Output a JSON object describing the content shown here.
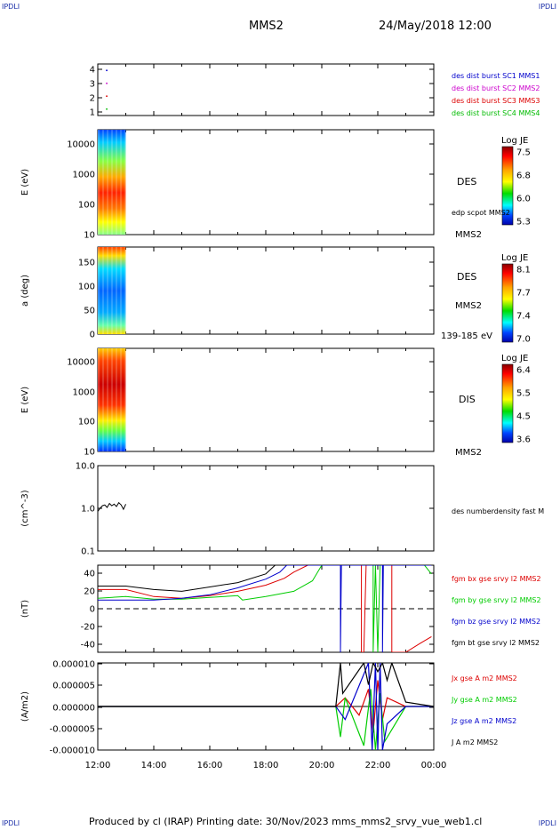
{
  "corner_label": "IPDLI",
  "header": {
    "title": "MMS2",
    "datetime": "24/May/2018 12:00"
  },
  "footer": "Produced by cl (IRAP)   Printing date: 30/Nov/2023   mms_mms2_srvy_vue_web1.cl",
  "x_axis": {
    "ticks": [
      "12:00",
      "14:00",
      "16:00",
      "18:00",
      "20:00",
      "22:00",
      "00:00"
    ]
  },
  "chart_data": [
    {
      "type": "scatter",
      "ylim": [
        0.5,
        4.5
      ],
      "yticks": [
        "4",
        "3",
        "2",
        "1"
      ],
      "legend": [
        {
          "label": "des dist burst SC1 MMS1",
          "color": "#0000cc"
        },
        {
          "label": "des dist burst SC2 MMS2",
          "color": "#cc00cc"
        },
        {
          "label": "des dist burst SC3 MMS3",
          "color": "#dd0000"
        },
        {
          "label": "des dist burst SC4 MMS4",
          "color": "#00bb00"
        }
      ],
      "points": [
        {
          "x": "12:10",
          "y": 4,
          "color": "#0000cc"
        },
        {
          "x": "12:10",
          "y": 3,
          "color": "#cc00cc"
        },
        {
          "x": "12:10",
          "y": 2,
          "color": "#dd0000"
        },
        {
          "x": "12:10",
          "y": 1,
          "color": "#00bb00"
        }
      ]
    },
    {
      "type": "heatmap",
      "ylabel": "E (eV)",
      "yticks": [
        "10000",
        "1000",
        "100",
        "10"
      ],
      "x_range": [
        "12:00",
        "13:00"
      ],
      "right_labels": [
        "DES",
        "edp scpot MMS2",
        "MMS2"
      ],
      "colorbar": {
        "title": "Log JE",
        "ticks": [
          "7.5",
          "6.8",
          "6.0",
          "5.3"
        ]
      }
    },
    {
      "type": "heatmap",
      "ylabel": "a (deg)",
      "yticks": [
        "150",
        "100",
        "50",
        "0"
      ],
      "x_range": [
        "12:00",
        "13:00"
      ],
      "right_labels": [
        "DES",
        "MMS2",
        "139-185 eV"
      ],
      "colorbar": {
        "title": "Log JE",
        "ticks": [
          "8.1",
          "7.7",
          "7.4",
          "7.0"
        ]
      }
    },
    {
      "type": "heatmap",
      "ylabel": "E (eV)",
      "yticks": [
        "10000",
        "1000",
        "100",
        "10"
      ],
      "x_range": [
        "12:00",
        "13:00"
      ],
      "right_labels": [
        "DIS",
        "MMS2"
      ],
      "colorbar": {
        "title": "Log JE",
        "ticks": [
          "6.4",
          "5.5",
          "4.5",
          "3.6"
        ]
      }
    },
    {
      "type": "line",
      "ylabel": "(cm^-3)",
      "yscale": "log",
      "yticks": [
        "10.0",
        "1.0",
        "0.1"
      ],
      "series": [
        {
          "name": "des numberdensity fast M",
          "color": "#000000",
          "x": [
            "12:00",
            "12:05",
            "12:10",
            "12:15",
            "12:20",
            "12:25",
            "12:30",
            "12:35",
            "12:40",
            "12:45",
            "12:50",
            "12:55",
            "13:00"
          ],
          "y": [
            0.85,
            1.0,
            1.15,
            1.2,
            1.05,
            1.3,
            1.15,
            1.25,
            1.1,
            1.35,
            1.2,
            0.95,
            1.25
          ]
        }
      ]
    },
    {
      "type": "line",
      "ylabel": "(nT)",
      "ylim": [
        -50,
        50
      ],
      "yticks": [
        "40",
        "20",
        "0",
        "-20",
        "-40"
      ],
      "series": [
        {
          "name": "fgm bx gse srvy l2 MMS2",
          "color": "#dd0000",
          "x": [
            "12:00",
            "13:00",
            "14:00",
            "15:00",
            "16:00",
            "17:00",
            "18:00",
            "18:40",
            "19:00",
            "19:30",
            "21:25",
            "21:25",
            "21:30",
            "21:35",
            "22:00",
            "22:20",
            "22:30",
            "22:30",
            "23:00",
            "23:30",
            "23:55"
          ],
          "y": [
            22,
            22,
            14,
            12,
            15,
            20,
            27,
            35,
            42,
            50,
            50,
            -50,
            -50,
            50,
            50,
            50,
            50,
            -50,
            -50,
            -40,
            -32
          ]
        },
        {
          "name": "fgm by gse srvy l2 MMS2",
          "color": "#00cc00",
          "x": [
            "12:00",
            "13:00",
            "14:00",
            "15:00",
            "16:00",
            "17:00",
            "17:10",
            "18:00",
            "19:00",
            "19:40",
            "20:00",
            "21:50",
            "21:50",
            "21:55",
            "22:00",
            "22:05",
            "22:10",
            "23:40",
            "23:55"
          ],
          "y": [
            12,
            14,
            11,
            11,
            13,
            15,
            10,
            14,
            20,
            32,
            50,
            50,
            -50,
            50,
            -50,
            50,
            50,
            50,
            40
          ]
        },
        {
          "name": "fgm bz gse srvy l2 MMS2",
          "color": "#0000cc",
          "x": [
            "12:00",
            "13:00",
            "14:00",
            "15:00",
            "16:00",
            "17:00",
            "18:00",
            "18:30",
            "18:45",
            "20:40",
            "20:40",
            "20:42",
            "22:10",
            "22:10",
            "22:12",
            "23:55"
          ],
          "y": [
            10,
            10,
            10,
            12,
            16,
            24,
            34,
            42,
            50,
            50,
            -50,
            50,
            50,
            -50,
            50,
            50
          ]
        },
        {
          "name": "fgm bt gse srvy l2 MMS2",
          "color": "#000000",
          "x": [
            "12:00",
            "13:00",
            "14:00",
            "15:00",
            "16:00",
            "17:00",
            "18:00",
            "18:10",
            "18:20"
          ],
          "y": [
            26,
            26,
            22,
            20,
            25,
            30,
            40,
            45,
            50
          ]
        }
      ]
    },
    {
      "type": "line",
      "ylabel": "(A/m2)",
      "ylim": [
        -1e-05,
        1e-05
      ],
      "yticks": [
        "0.000010",
        "0.000005",
        "0.000000",
        "-0.000005",
        "-0.000010"
      ],
      "series": [
        {
          "name": "Jx gse A m2 MMS2",
          "color": "#dd0000",
          "x": [
            "12:00",
            "20:30",
            "20:50",
            "21:20",
            "21:40",
            "21:50",
            "22:00",
            "22:10",
            "22:20",
            "23:00",
            "00:00"
          ],
          "y": [
            0,
            0,
            2e-06,
            -2e-06,
            4e-06,
            -6e-06,
            6e-06,
            -3e-06,
            2e-06,
            0,
            0
          ]
        },
        {
          "name": "Jy gse A m2 MMS2",
          "color": "#00cc00",
          "x": [
            "12:00",
            "20:30",
            "20:40",
            "20:50",
            "21:30",
            "21:45",
            "21:55",
            "22:05",
            "22:15",
            "23:00",
            "00:00"
          ],
          "y": [
            0,
            0,
            -7e-06,
            2e-06,
            -9e-06,
            4e-06,
            -1e-05,
            3e-06,
            -8e-06,
            0,
            0
          ]
        },
        {
          "name": "Jz gse A m2 MMS2",
          "color": "#0000cc",
          "x": [
            "12:00",
            "20:30",
            "20:50",
            "21:40",
            "21:48",
            "21:55",
            "22:00",
            "22:05",
            "22:10",
            "22:20",
            "23:00",
            "00:00"
          ],
          "y": [
            0,
            0,
            -3e-06,
            1e-05,
            -1e-05,
            1e-05,
            -1e-05,
            1e-05,
            -1e-05,
            -4e-06,
            0,
            0
          ]
        },
        {
          "name": "J A m2 MMS2",
          "color": "#000000",
          "x": [
            "12:00",
            "20:30",
            "20:40",
            "20:45",
            "21:30",
            "21:40",
            "21:50",
            "22:00",
            "22:10",
            "22:20",
            "22:30",
            "23:00",
            "00:00"
          ],
          "y": [
            0,
            0,
            1e-05,
            3e-06,
            1e-05,
            5e-06,
            1e-05,
            8e-06,
            1e-05,
            6e-06,
            1e-05,
            1e-06,
            0
          ]
        }
      ]
    }
  ]
}
